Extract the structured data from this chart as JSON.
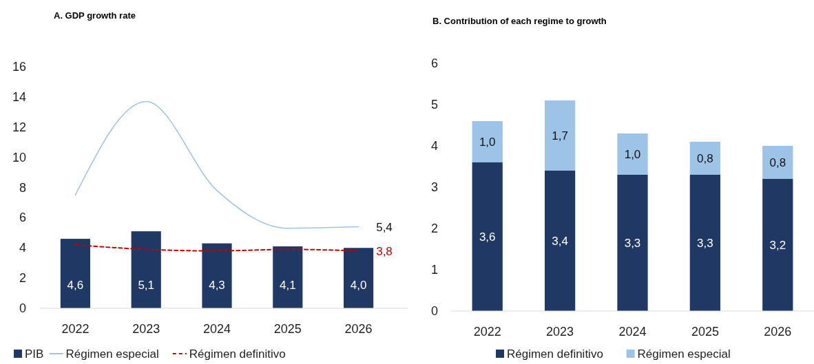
{
  "chart_data": [
    {
      "type": "bar",
      "title": "A. GDP growth rate",
      "categories": [
        "2022",
        "2023",
        "2024",
        "2025",
        "2026"
      ],
      "ylim": [
        0,
        16
      ],
      "yticks": [
        0,
        2,
        4,
        6,
        8,
        10,
        12,
        14,
        16
      ],
      "grid": false,
      "legend": "bottom",
      "series": [
        {
          "name": "PIB",
          "color": "#203864",
          "values": [
            4.6,
            5.1,
            4.3,
            4.1,
            4.0
          ],
          "value_labels": [
            "4,6",
            "5,1",
            "4,3",
            "4,1",
            "4,0"
          ]
        },
        {
          "name": "Régimen especial",
          "type": "line",
          "color": "#9dc3e6",
          "line_style": "solid",
          "values": [
            7.5,
            13.7,
            7.8,
            5.3,
            5.4
          ],
          "value_labels": [
            null,
            null,
            null,
            null,
            "5,4"
          ]
        },
        {
          "name": "Régimen definitivo",
          "type": "line",
          "color": "#c00000",
          "line_style": "dashed",
          "values": [
            4.2,
            3.9,
            3.8,
            3.9,
            3.8
          ],
          "value_labels": [
            null,
            null,
            null,
            null,
            "3,8"
          ]
        }
      ]
    },
    {
      "type": "bar",
      "title": "B. Contribution of each regime to growth",
      "categories": [
        "2022",
        "2023",
        "2024",
        "2025",
        "2026"
      ],
      "stacked": true,
      "ylim": [
        0,
        6
      ],
      "yticks": [
        0,
        1,
        2,
        3,
        4,
        5,
        6
      ],
      "grid": false,
      "legend": "bottom",
      "series": [
        {
          "name": "Régimen definitivo",
          "color": "#203864",
          "values": [
            3.6,
            3.4,
            3.3,
            3.3,
            3.2
          ],
          "value_labels": [
            "3,6",
            "3,4",
            "3,3",
            "3,3",
            "3,2"
          ]
        },
        {
          "name": "Régimen especial",
          "color": "#9dc3e6",
          "values": [
            1.0,
            1.7,
            1.0,
            0.8,
            0.8
          ],
          "value_labels": [
            "1,0",
            "1,7",
            "1,0",
            "0,8",
            "0,8"
          ]
        }
      ]
    }
  ]
}
